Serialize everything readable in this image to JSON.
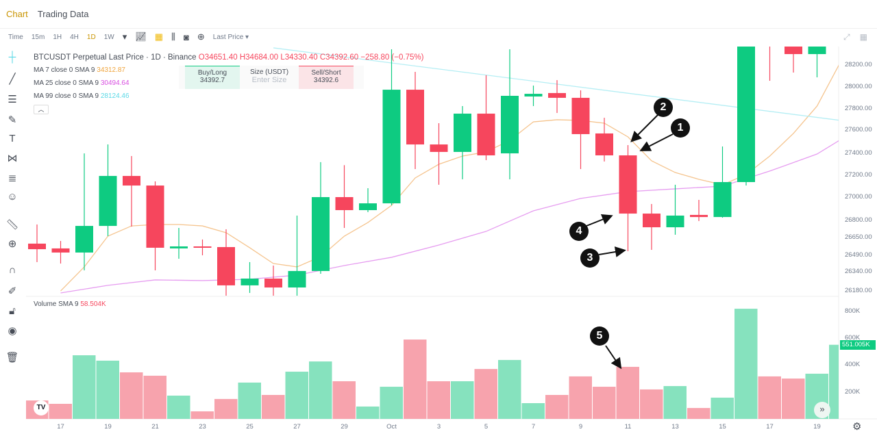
{
  "tabs": [
    {
      "label": "Chart",
      "active": true
    },
    {
      "label": "Trading Data",
      "active": false
    }
  ],
  "toolbar": {
    "time_label": "Time",
    "intervals": [
      "15m",
      "1H",
      "4H",
      "1D",
      "1W"
    ],
    "active_interval": "1D",
    "price_type": "Last Price"
  },
  "legend": {
    "title": "BTCUSDT Perpetual Last Price · 1D · Binance",
    "ohlc": "O34651.40 H34684.00 L34330.40 C34392.60 −258.80 (−0.75%)",
    "ma": [
      {
        "label": "MA 7 close 0 SMA 9",
        "value": "34312.87",
        "color": "#f0a43c"
      },
      {
        "label": "MA 25 close 0 SMA 9",
        "value": "30494.64",
        "color": "#d84ee0"
      },
      {
        "label": "MA 99 close 0 SMA 9",
        "value": "28124.46",
        "color": "#5ad8e6"
      }
    ]
  },
  "trade": {
    "buy_label": "Buy/Long",
    "buy_price": "34392.7",
    "size_label": "Size (USDT)",
    "size_placeholder": "Enter Size",
    "sell_label": "Sell/Short",
    "sell_price": "34392.6"
  },
  "volume": {
    "label": "Volume SMA 9",
    "value": "58.504K",
    "last_tag": "551.005K"
  },
  "colors": {
    "up": "#0ecb81",
    "down": "#f6465d",
    "vol_up": "#86e2be",
    "vol_down": "#f7a3ad",
    "accent": "#c99400"
  },
  "chart_data": {
    "type": "candlestick",
    "price_ticks": [
      "28200.00",
      "28000.00",
      "27800.00",
      "27600.00",
      "27400.00",
      "27200.00",
      "27000.00",
      "26800.00",
      "26650.00",
      "26490.00",
      "26340.00",
      "26180.00"
    ],
    "volume_ticks": [
      "800K",
      "600K",
      "400K",
      "200K"
    ],
    "date_ticks": [
      {
        "date": "Sep 17",
        "label": "17"
      },
      {
        "date": "Sep 19",
        "label": "19"
      },
      {
        "date": "Sep 21",
        "label": "21"
      },
      {
        "date": "Sep 23",
        "label": "23"
      },
      {
        "date": "Sep 25",
        "label": "25"
      },
      {
        "date": "Sep 27",
        "label": "27"
      },
      {
        "date": "Sep 29",
        "label": "29"
      },
      {
        "date": "Oct 1",
        "label": "Oct"
      },
      {
        "date": "Oct 3",
        "label": "3"
      },
      {
        "date": "Oct 5",
        "label": "5"
      },
      {
        "date": "Oct 7",
        "label": "7"
      },
      {
        "date": "Oct 9",
        "label": "9"
      },
      {
        "date": "Oct 11",
        "label": "11"
      },
      {
        "date": "Oct 13",
        "label": "13"
      },
      {
        "date": "Oct 15",
        "label": "15"
      },
      {
        "date": "Oct 17",
        "label": "17"
      },
      {
        "date": "Oct 19",
        "label": "19"
      }
    ],
    "candles": [
      {
        "date": "Sep 16",
        "o": 26595,
        "h": 26767,
        "l": 26429,
        "c": 26545,
        "v": 137
      },
      {
        "date": "Sep 17",
        "o": 26552,
        "h": 26619,
        "l": 26416,
        "c": 26515,
        "v": 112
      },
      {
        "date": "Sep 18",
        "o": 26515,
        "h": 27406,
        "l": 26355,
        "c": 26754,
        "v": 473
      },
      {
        "date": "Sep 19",
        "o": 26754,
        "h": 27486,
        "l": 26662,
        "c": 27203,
        "v": 433
      },
      {
        "date": "Sep 20",
        "o": 27203,
        "h": 27382,
        "l": 26748,
        "c": 27117,
        "v": 346
      },
      {
        "date": "Sep 21",
        "o": 27117,
        "h": 27154,
        "l": 26355,
        "c": 26558,
        "v": 321
      },
      {
        "date": "Sep 22",
        "o": 26552,
        "h": 26736,
        "l": 26459,
        "c": 26570,
        "v": 173
      },
      {
        "date": "Sep 23",
        "o": 26570,
        "h": 26632,
        "l": 26490,
        "c": 26558,
        "v": 56
      },
      {
        "date": "Sep 24",
        "o": 26564,
        "h": 26724,
        "l": 26127,
        "c": 26220,
        "v": 148
      },
      {
        "date": "Sep 25",
        "o": 26220,
        "h": 26429,
        "l": 26152,
        "c": 26281,
        "v": 270
      },
      {
        "date": "Sep 26",
        "o": 26281,
        "h": 26398,
        "l": 26127,
        "c": 26201,
        "v": 178
      },
      {
        "date": "Sep 27",
        "o": 26201,
        "h": 26847,
        "l": 26127,
        "c": 26349,
        "v": 351
      },
      {
        "date": "Sep 28",
        "o": 26349,
        "h": 27327,
        "l": 26324,
        "c": 27013,
        "v": 427
      },
      {
        "date": "Sep 29",
        "o": 27013,
        "h": 27300,
        "l": 26736,
        "c": 26896,
        "v": 280
      },
      {
        "date": "Sep 30",
        "o": 26896,
        "h": 27093,
        "l": 26878,
        "c": 26957,
        "v": 92
      },
      {
        "date": "Oct 1",
        "o": 26957,
        "h": 28341,
        "l": 26939,
        "c": 27978,
        "v": 239
      },
      {
        "date": "Oct 2",
        "o": 27978,
        "h": 28138,
        "l": 27265,
        "c": 27486,
        "v": 590
      },
      {
        "date": "Oct 3",
        "o": 27486,
        "h": 27677,
        "l": 27124,
        "c": 27419,
        "v": 280
      },
      {
        "date": "Oct 4",
        "o": 27419,
        "h": 27831,
        "l": 27173,
        "c": 27763,
        "v": 280
      },
      {
        "date": "Oct 5",
        "o": 27763,
        "h": 28108,
        "l": 27345,
        "c": 27388,
        "v": 371
      },
      {
        "date": "Oct 6",
        "o": 27406,
        "h": 28341,
        "l": 27173,
        "c": 27923,
        "v": 438
      },
      {
        "date": "Oct 7",
        "o": 27917,
        "h": 28015,
        "l": 27831,
        "c": 27941,
        "v": 117
      },
      {
        "date": "Oct 8",
        "o": 27948,
        "h": 28064,
        "l": 27769,
        "c": 27905,
        "v": 178
      },
      {
        "date": "Oct 9",
        "o": 27905,
        "h": 27972,
        "l": 27265,
        "c": 27579,
        "v": 316
      },
      {
        "date": "Oct 10",
        "o": 27585,
        "h": 27726,
        "l": 27333,
        "c": 27388,
        "v": 239
      },
      {
        "date": "Oct 11",
        "o": 27388,
        "h": 27480,
        "l": 26527,
        "c": 26865,
        "v": 387
      },
      {
        "date": "Oct 12",
        "o": 26865,
        "h": 26951,
        "l": 26539,
        "c": 26742,
        "v": 219
      },
      {
        "date": "Oct 13",
        "o": 26742,
        "h": 27124,
        "l": 26675,
        "c": 26847,
        "v": 244
      },
      {
        "date": "Oct 14",
        "o": 26853,
        "h": 26988,
        "l": 26798,
        "c": 26834,
        "v": 81
      },
      {
        "date": "Oct 15",
        "o": 26834,
        "h": 27468,
        "l": 26828,
        "c": 27148,
        "v": 158
      },
      {
        "date": "Oct 16",
        "o": 27148,
        "h": 28650,
        "l": 27117,
        "c": 28540,
        "v": 819
      },
      {
        "date": "Oct 17",
        "o": 28600,
        "h": 28650,
        "l": 28058,
        "c": 28480,
        "v": 316
      },
      {
        "date": "Oct 18",
        "o": 28415,
        "h": 28600,
        "l": 28132,
        "c": 28298,
        "v": 300
      },
      {
        "date": "Oct 19",
        "o": 28298,
        "h": 28600,
        "l": 28089,
        "c": 28446,
        "v": 336
      },
      {
        "date": "Oct 20",
        "o": 28446,
        "h": 28700,
        "l": 28300,
        "c": 28600,
        "v": 551
      }
    ],
    "ma_lines": [
      {
        "name": "MA 7",
        "color": "#f5c48e",
        "points": [
          [
            "Sep 17",
            26170
          ],
          [
            "Sep 18",
            26386
          ],
          [
            "Sep 19",
            26662
          ],
          [
            "Sep 20",
            26754
          ],
          [
            "Sep 21",
            26767
          ],
          [
            "Sep 22",
            26767
          ],
          [
            "Sep 23",
            26754
          ],
          [
            "Sep 24",
            26693
          ],
          [
            "Sep 25",
            26558
          ],
          [
            "Sep 26",
            26416
          ],
          [
            "Sep 27",
            26386
          ],
          [
            "Sep 28",
            26478
          ],
          [
            "Sep 29",
            26662
          ],
          [
            "Sep 30",
            26785
          ],
          [
            "Oct 1",
            26939
          ],
          [
            "Oct 2",
            27185
          ],
          [
            "Oct 3",
            27308
          ],
          [
            "Oct 4",
            27382
          ],
          [
            "Oct 5",
            27419
          ],
          [
            "Oct 6",
            27523
          ],
          [
            "Oct 7",
            27689
          ],
          [
            "Oct 8",
            27708
          ],
          [
            "Oct 9",
            27702
          ],
          [
            "Oct 10",
            27677
          ],
          [
            "Oct 11",
            27554
          ],
          [
            "Oct 12",
            27339
          ],
          [
            "Oct 13",
            27234
          ],
          [
            "Oct 14",
            27173
          ],
          [
            "Oct 15",
            27124
          ],
          [
            "Oct 16",
            27216
          ],
          [
            "Oct 17",
            27382
          ],
          [
            "Oct 18",
            27585
          ],
          [
            "Oct 19",
            27831
          ],
          [
            "Oct 20",
            28230
          ]
        ]
      },
      {
        "name": "MA 25",
        "color": "#e69cf0",
        "points": [
          [
            "Sep 17",
            26152
          ],
          [
            "Sep 19",
            26220
          ],
          [
            "Sep 21",
            26269
          ],
          [
            "Sep 23",
            26263
          ],
          [
            "Sep 25",
            26275
          ],
          [
            "Sep 27",
            26312
          ],
          [
            "Sep 29",
            26398
          ],
          [
            "Oct 1",
            26472
          ],
          [
            "Oct 3",
            26582
          ],
          [
            "Oct 5",
            26705
          ],
          [
            "Oct 7",
            26890
          ],
          [
            "Oct 9",
            27001
          ],
          [
            "Oct 11",
            27062
          ],
          [
            "Oct 13",
            27087
          ],
          [
            "Oct 15",
            27111
          ],
          [
            "Oct 17",
            27247
          ],
          [
            "Oct 19",
            27400
          ],
          [
            "Oct 20",
            27530
          ]
        ]
      },
      {
        "name": "MA 99",
        "color": "#b4eef4",
        "points": [
          [
            "Sep 26",
            28354
          ],
          [
            "Oct 20",
            27702
          ]
        ]
      }
    ]
  },
  "annotations": [
    "1",
    "2",
    "3",
    "4",
    "5"
  ]
}
